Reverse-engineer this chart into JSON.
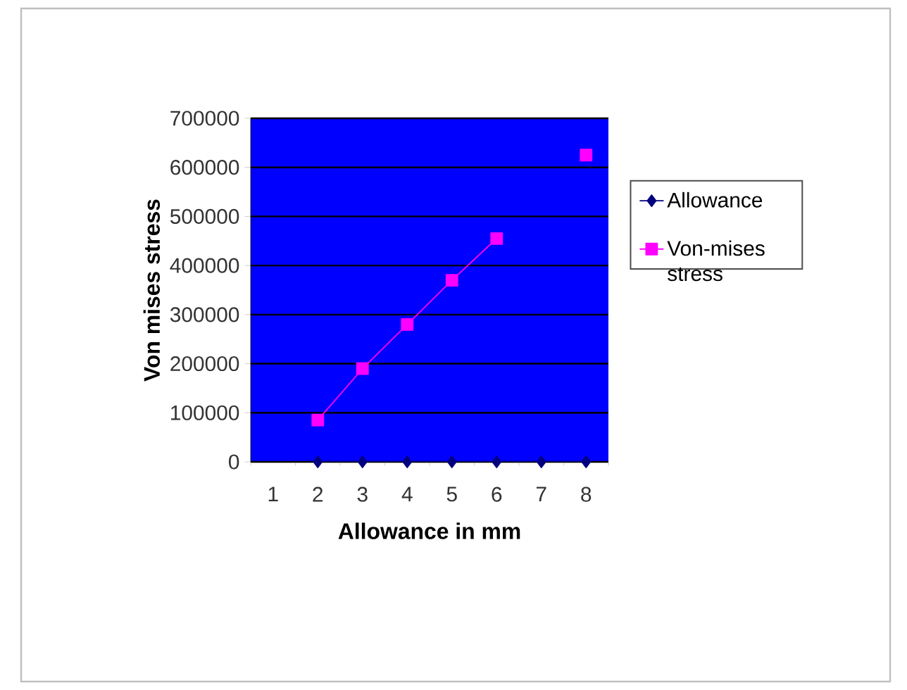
{
  "chart_data": {
    "type": "line",
    "xlabel": "Allowance in mm",
    "ylabel": "Von mises  stress",
    "categories": [
      "1",
      "2",
      "3",
      "4",
      "5",
      "6",
      "7",
      "8"
    ],
    "series": [
      {
        "name": "Allowance",
        "color": "#000080",
        "marker": "diamond",
        "values": [
          null,
          0,
          0,
          0,
          0,
          0,
          0,
          0
        ]
      },
      {
        "name": "Von-mises stress",
        "color": "#ff00ff",
        "marker": "square",
        "values": [
          null,
          85000,
          190000,
          280000,
          370000,
          455000,
          null,
          625000
        ]
      }
    ],
    "ylim": [
      0,
      700000
    ],
    "yticks": [
      0,
      100000,
      200000,
      300000,
      400000,
      500000,
      600000,
      700000
    ],
    "grid": "y",
    "legend": "right"
  }
}
